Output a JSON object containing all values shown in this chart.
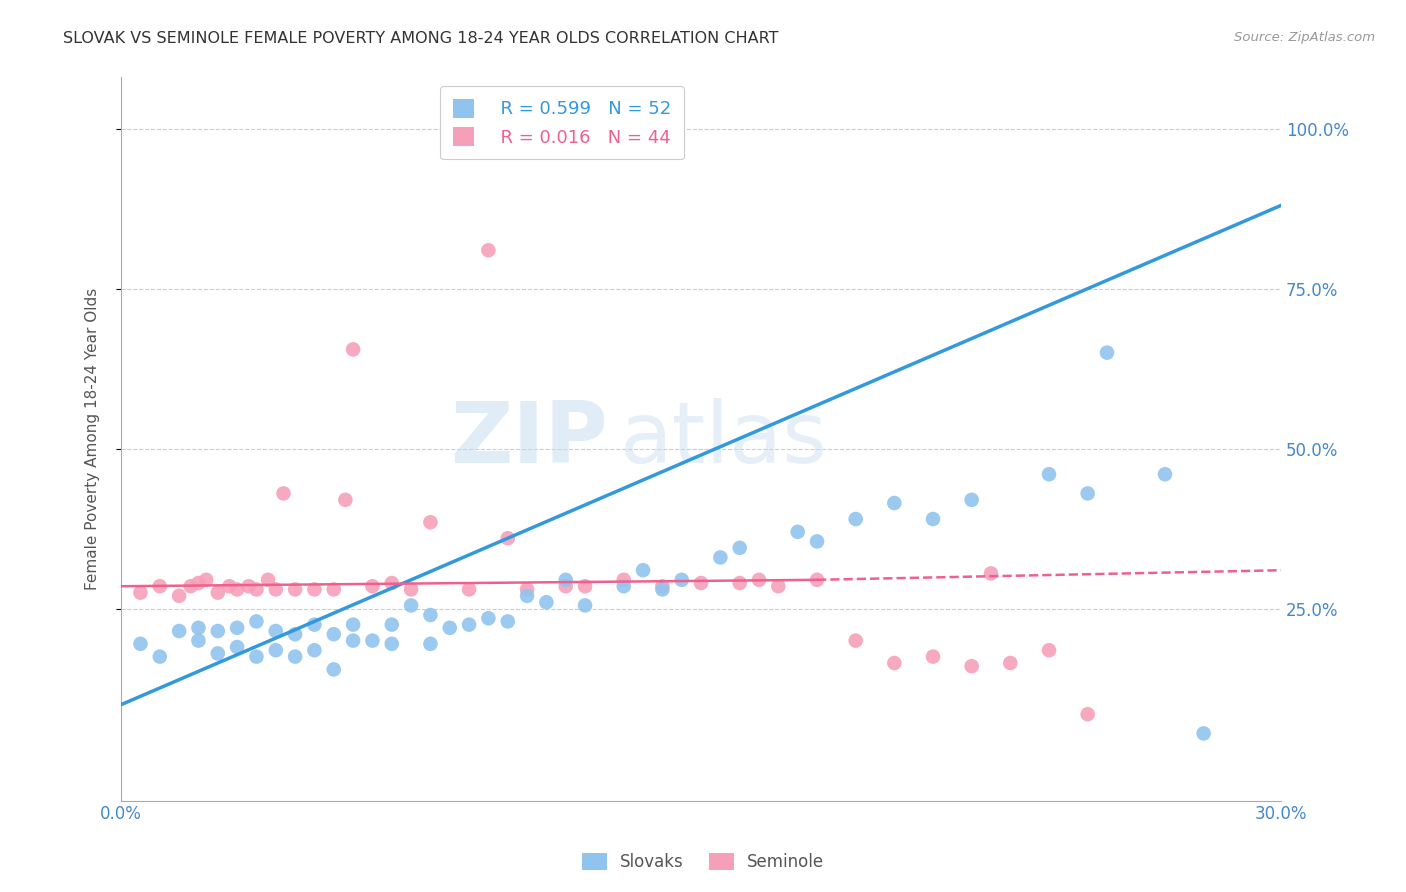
{
  "title": "SLOVAK VS SEMINOLE FEMALE POVERTY AMONG 18-24 YEAR OLDS CORRELATION CHART",
  "source": "Source: ZipAtlas.com",
  "ylabel": "Female Poverty Among 18-24 Year Olds",
  "xlim": [
    0.0,
    0.3
  ],
  "ylim": [
    -0.05,
    1.08
  ],
  "xticks": [
    0.0,
    0.3
  ],
  "yticks": [
    0.25,
    0.5,
    0.75,
    1.0
  ],
  "legend_r1": "R = 0.599   N = 52",
  "legend_r2": "R = 0.016   N = 44",
  "legend_label1": "Slovaks",
  "legend_label2": "Seminole",
  "color_slovak": "#90C4EE",
  "color_seminole": "#F5A0B8",
  "color_line_slovak": "#3399DD",
  "color_line_seminole": "#EE6090",
  "watermark_zip": "ZIP",
  "watermark_atlas": "atlas",
  "slovak_x": [
    0.005,
    0.01,
    0.015,
    0.02,
    0.02,
    0.025,
    0.025,
    0.03,
    0.03,
    0.035,
    0.035,
    0.04,
    0.04,
    0.045,
    0.045,
    0.05,
    0.05,
    0.055,
    0.055,
    0.06,
    0.06,
    0.065,
    0.07,
    0.07,
    0.075,
    0.08,
    0.08,
    0.085,
    0.09,
    0.095,
    0.1,
    0.105,
    0.11,
    0.115,
    0.12,
    0.13,
    0.135,
    0.14,
    0.145,
    0.155,
    0.16,
    0.175,
    0.18,
    0.19,
    0.2,
    0.21,
    0.22,
    0.24,
    0.25,
    0.255,
    0.27,
    0.28
  ],
  "slovak_y": [
    0.195,
    0.175,
    0.215,
    0.2,
    0.22,
    0.18,
    0.215,
    0.19,
    0.22,
    0.175,
    0.23,
    0.185,
    0.215,
    0.175,
    0.21,
    0.185,
    0.225,
    0.155,
    0.21,
    0.2,
    0.225,
    0.2,
    0.195,
    0.225,
    0.255,
    0.195,
    0.24,
    0.22,
    0.225,
    0.235,
    0.23,
    0.27,
    0.26,
    0.295,
    0.255,
    0.285,
    0.31,
    0.28,
    0.295,
    0.33,
    0.345,
    0.37,
    0.355,
    0.39,
    0.415,
    0.39,
    0.42,
    0.46,
    0.43,
    0.65,
    0.46,
    0.055
  ],
  "seminole_x": [
    0.005,
    0.01,
    0.015,
    0.018,
    0.02,
    0.022,
    0.025,
    0.028,
    0.03,
    0.033,
    0.035,
    0.038,
    0.04,
    0.042,
    0.045,
    0.05,
    0.055,
    0.058,
    0.06,
    0.065,
    0.07,
    0.075,
    0.08,
    0.09,
    0.095,
    0.1,
    0.105,
    0.115,
    0.12,
    0.13,
    0.14,
    0.15,
    0.16,
    0.165,
    0.17,
    0.18,
    0.19,
    0.2,
    0.21,
    0.22,
    0.225,
    0.23,
    0.24,
    0.25
  ],
  "seminole_y": [
    0.275,
    0.285,
    0.27,
    0.285,
    0.29,
    0.295,
    0.275,
    0.285,
    0.28,
    0.285,
    0.28,
    0.295,
    0.28,
    0.43,
    0.28,
    0.28,
    0.28,
    0.42,
    0.655,
    0.285,
    0.29,
    0.28,
    0.385,
    0.28,
    0.81,
    0.36,
    0.28,
    0.285,
    0.285,
    0.295,
    0.285,
    0.29,
    0.29,
    0.295,
    0.285,
    0.295,
    0.2,
    0.165,
    0.175,
    0.16,
    0.305,
    0.165,
    0.185,
    0.085
  ],
  "line_slovak": [
    0.0,
    0.3,
    0.1,
    0.88
  ],
  "line_seminole_solid": [
    0.0,
    0.18,
    0.285,
    0.295
  ],
  "line_seminole_dashed": [
    0.18,
    0.3,
    0.295,
    0.31
  ],
  "background_color": "#FFFFFF",
  "grid_color": "#CCCCCC"
}
